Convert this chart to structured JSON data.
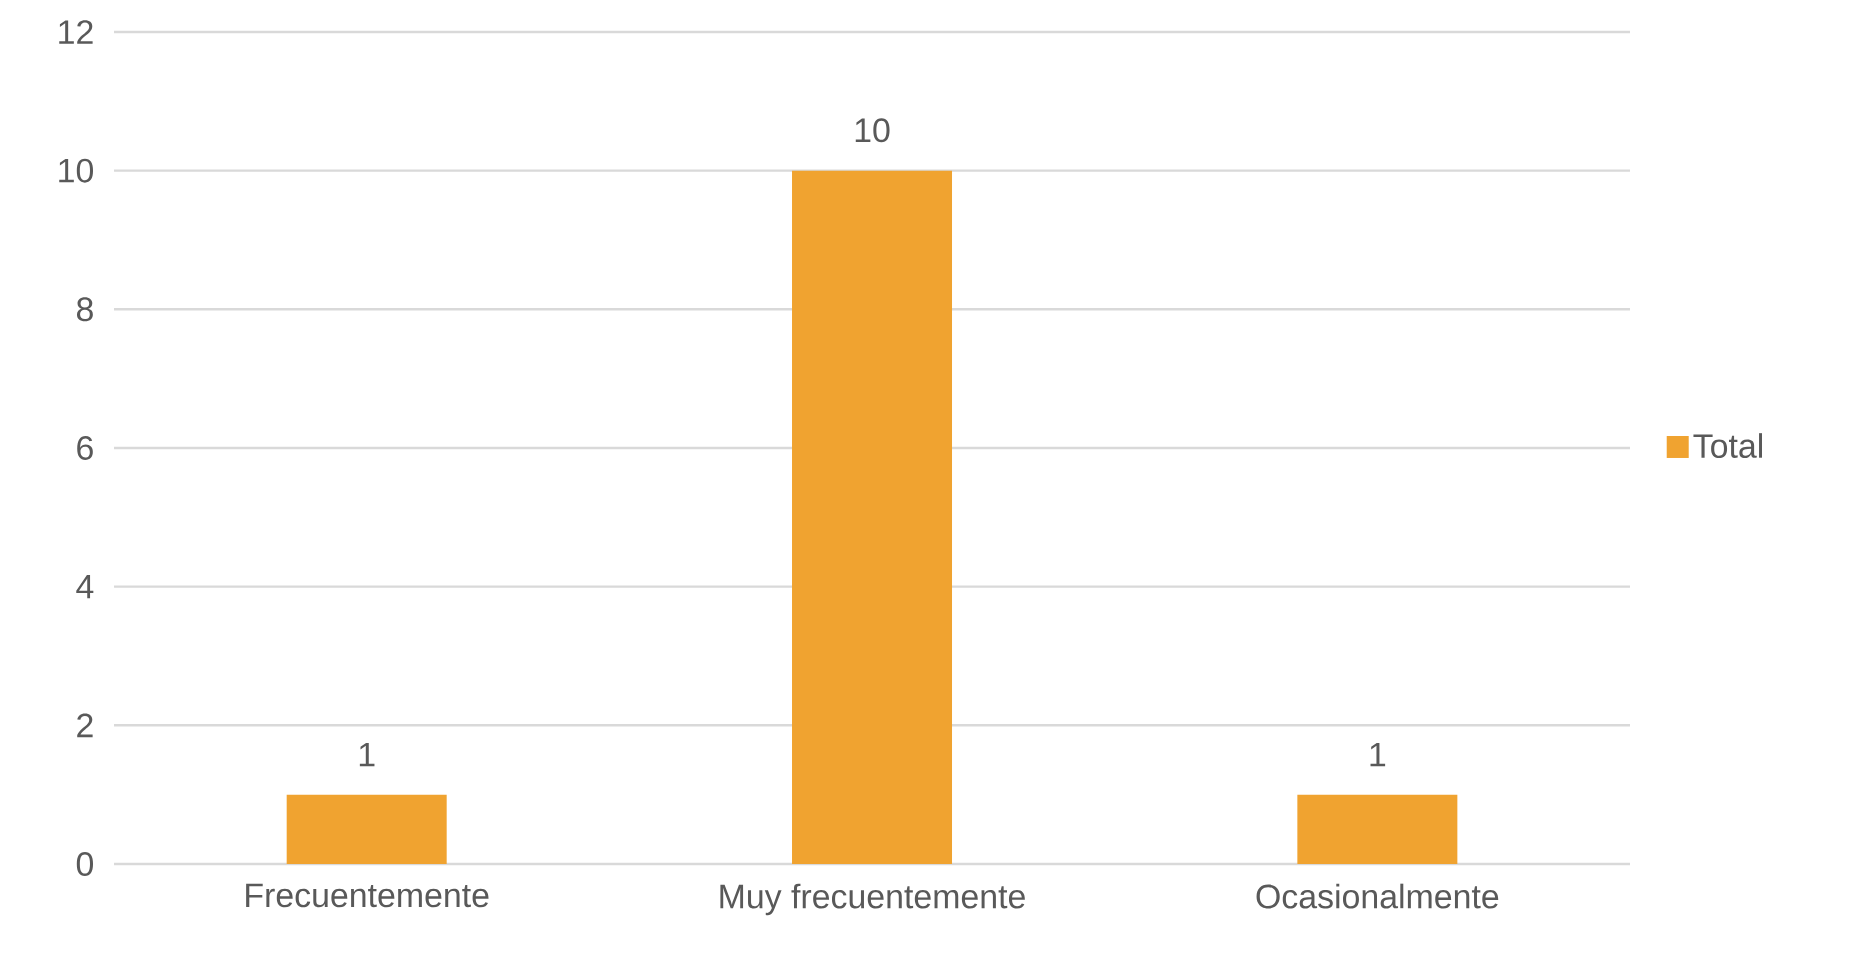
{
  "chart_data": {
    "type": "bar",
    "categories": [
      "Frecuentemente",
      "Muy frecuentemente",
      "Ocasionalmente"
    ],
    "series": [
      {
        "name": "Total",
        "color": "#f0a330",
        "values": [
          1,
          10,
          1
        ]
      }
    ],
    "ylim": [
      0,
      12
    ],
    "yticks": [
      0,
      2,
      4,
      6,
      8,
      10,
      12
    ],
    "grid": "y",
    "legend": "right",
    "data_labels": true
  }
}
